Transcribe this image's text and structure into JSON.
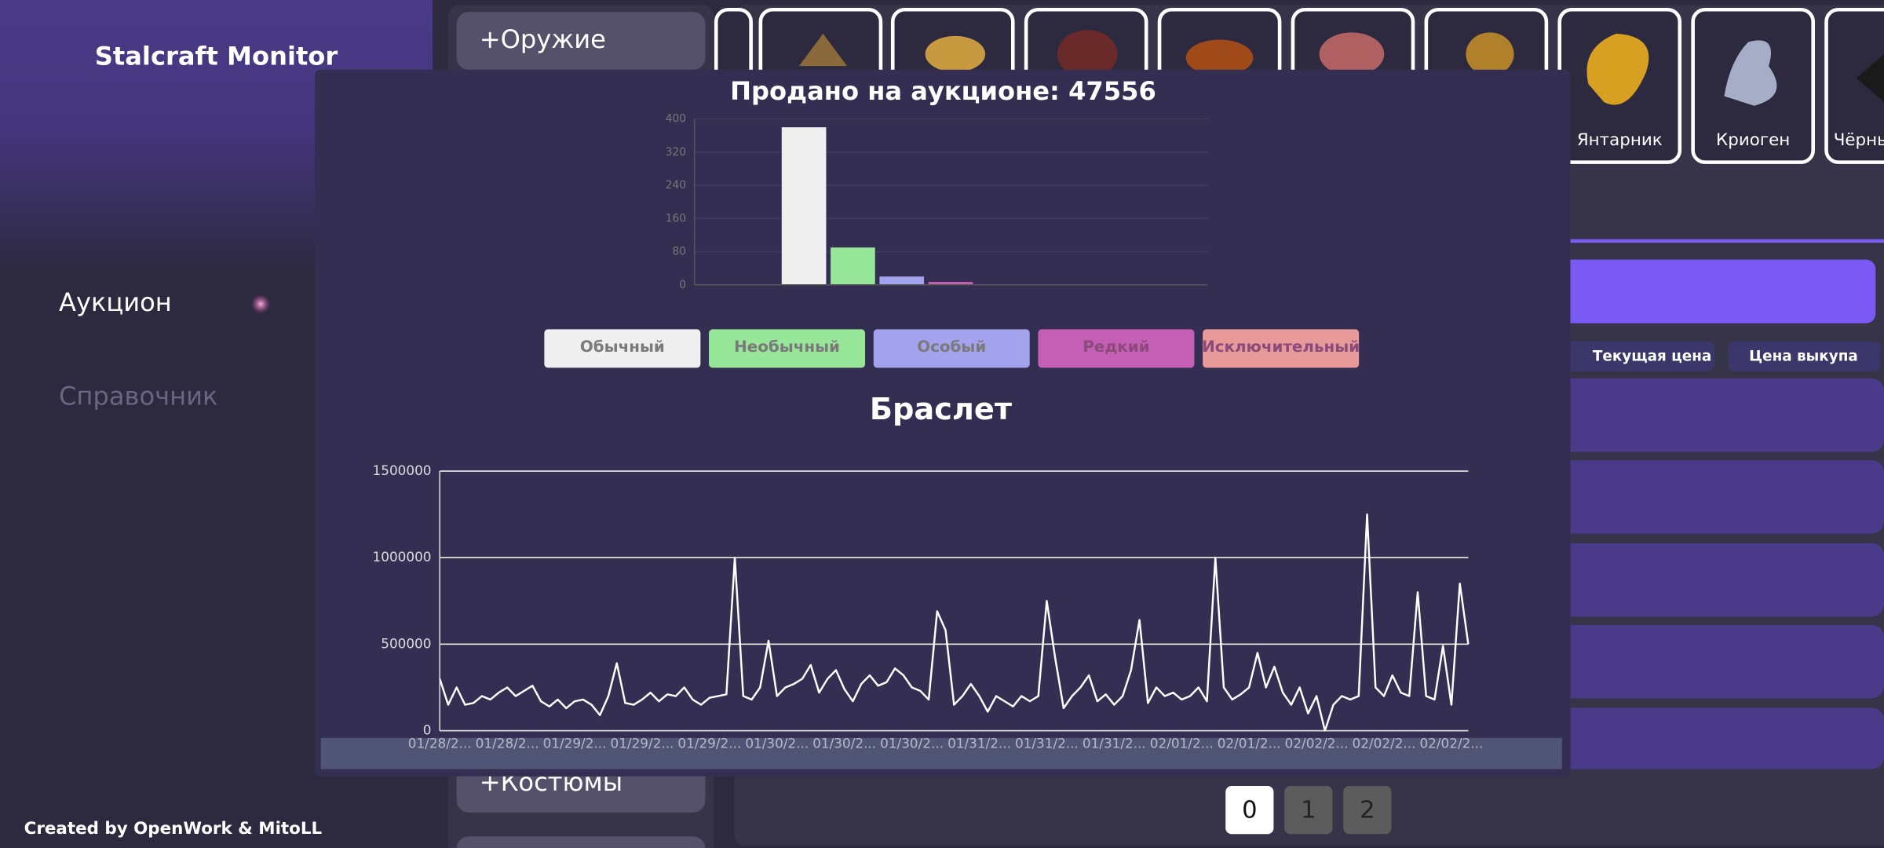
{
  "sidebar": {
    "title": "Stalcraft Monitor",
    "nav": [
      "Аукцион",
      "Справочник"
    ],
    "footer": "Created by OpenWork & MitoLL"
  },
  "category_buttons": [
    "+Оружие",
    "+Костюмы"
  ],
  "items": [
    "Янтарник",
    "Криоген",
    "Чёрны"
  ],
  "table_headers": [
    "Текущая цена",
    "Цена выкупа"
  ],
  "pagination": [
    "0",
    "1",
    "2"
  ],
  "chart_data": [
    {
      "type": "bar",
      "title": "Продано на аукционе: 47556",
      "categories": [
        null
      ],
      "series": [
        {
          "name": "Обычный",
          "color": "#efefef",
          "values": [
            380
          ]
        },
        {
          "name": "Необычный",
          "color": "#98e69a",
          "values": [
            90
          ]
        },
        {
          "name": "Особый",
          "color": "#a3a3ee",
          "values": [
            20
          ]
        },
        {
          "name": "Редкий",
          "color": "#c55fb5",
          "values": [
            7
          ]
        },
        {
          "name": "Исключительный",
          "color": "#e89a9a",
          "values": [
            0
          ]
        }
      ],
      "ylim": [
        0,
        400
      ],
      "yticks": [
        0,
        80,
        160,
        240,
        320,
        400
      ],
      "grid": true
    },
    {
      "type": "line",
      "title": "Браслет",
      "color": "#ffffff",
      "categories": [
        "01/28/2...",
        null,
        null,
        null,
        null,
        null,
        null,
        null,
        "01/28/2...",
        null,
        null,
        null,
        null,
        null,
        null,
        null,
        "01/29/2...",
        null,
        null,
        null,
        null,
        null,
        null,
        null,
        "01/29/2...",
        null,
        null,
        null,
        null,
        null,
        null,
        null,
        "01/29/2...",
        null,
        null,
        null,
        null,
        null,
        null,
        null,
        "01/30/2...",
        null,
        null,
        null,
        null,
        null,
        null,
        null,
        "01/30/2...",
        null,
        null,
        null,
        null,
        null,
        null,
        null,
        "01/30/2...",
        null,
        null,
        null,
        null,
        null,
        null,
        null,
        "01/31/2...",
        null,
        null,
        null,
        null,
        null,
        null,
        null,
        "01/31/2...",
        null,
        null,
        null,
        null,
        null,
        null,
        null,
        "01/31/2...",
        null,
        null,
        null,
        null,
        null,
        null,
        null,
        "02/01/2...",
        null,
        null,
        null,
        null,
        null,
        null,
        null,
        "02/01/2...",
        null,
        null,
        null,
        null,
        null,
        null,
        null,
        "02/02/2...",
        null,
        null,
        null,
        null,
        null,
        null,
        null,
        "02/02/2...",
        null,
        null,
        null,
        null,
        null,
        null,
        null,
        "02/02/2...",
        null,
        null
      ],
      "values": [
        300000,
        150000,
        250000,
        150000,
        160000,
        200000,
        180000,
        220000,
        250000,
        200000,
        230000,
        260000,
        170000,
        140000,
        180000,
        130000,
        170000,
        180000,
        150000,
        90000,
        200000,
        390000,
        160000,
        150000,
        180000,
        220000,
        170000,
        210000,
        200000,
        250000,
        180000,
        150000,
        190000,
        200000,
        210000,
        1000000,
        200000,
        180000,
        250000,
        520000,
        200000,
        250000,
        270000,
        300000,
        380000,
        220000,
        300000,
        350000,
        240000,
        170000,
        270000,
        320000,
        260000,
        280000,
        360000,
        320000,
        250000,
        230000,
        180000,
        690000,
        580000,
        150000,
        200000,
        270000,
        200000,
        110000,
        200000,
        170000,
        140000,
        200000,
        170000,
        200000,
        750000,
        420000,
        130000,
        200000,
        250000,
        320000,
        170000,
        210000,
        150000,
        200000,
        350000,
        640000,
        160000,
        250000,
        200000,
        220000,
        180000,
        200000,
        250000,
        170000,
        1000000,
        250000,
        180000,
        210000,
        250000,
        450000,
        250000,
        370000,
        220000,
        150000,
        250000,
        100000,
        200000,
        0,
        150000,
        200000,
        180000,
        200000,
        1250000,
        250000,
        200000,
        320000,
        220000,
        200000,
        800000,
        200000,
        180000,
        490000,
        150000,
        850000,
        500000
      ],
      "ylim": [
        0,
        1500000
      ],
      "yticks": [
        0,
        500000,
        1000000,
        1500000
      ],
      "grid": true
    }
  ]
}
